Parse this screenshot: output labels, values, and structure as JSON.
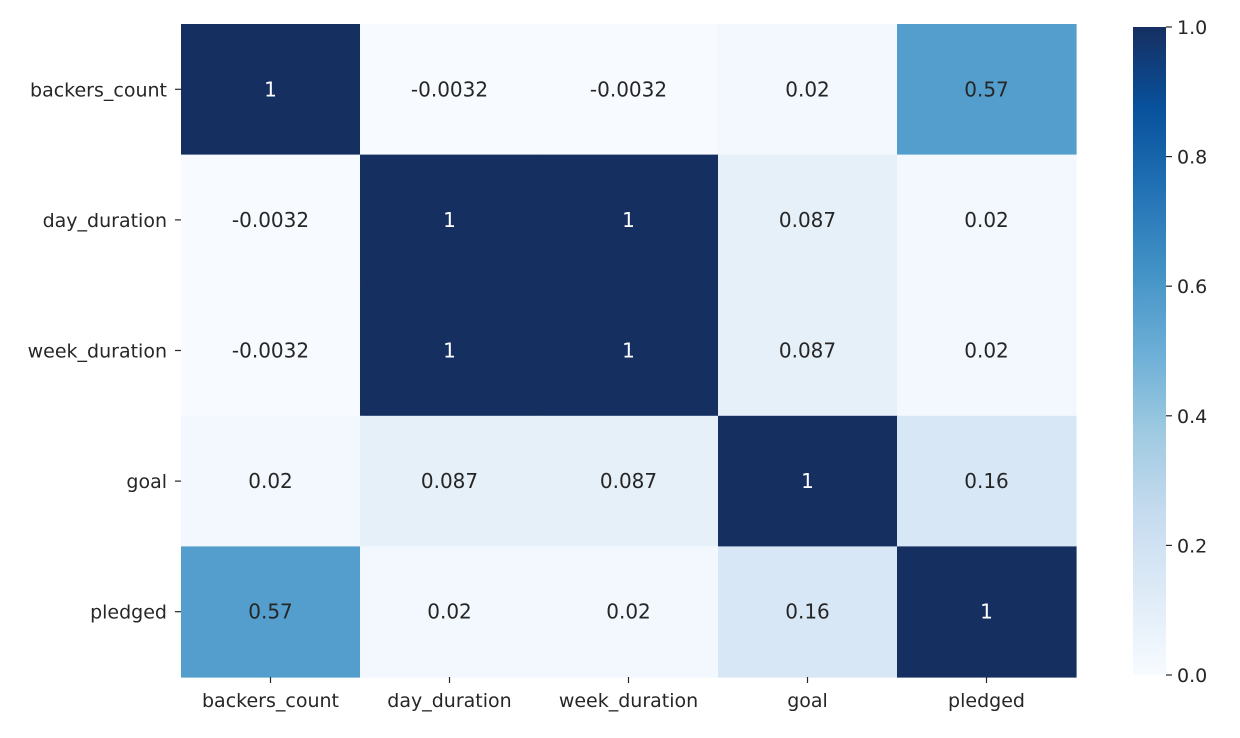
{
  "chart_data": {
    "type": "heatmap",
    "title": "",
    "xlabel": "",
    "ylabel": "",
    "rows": [
      "backers_count",
      "day_duration",
      "week_duration",
      "goal",
      "pledged"
    ],
    "columns": [
      "backers_count",
      "day_duration",
      "week_duration",
      "goal",
      "pledged"
    ],
    "values": [
      [
        1,
        -0.0032,
        -0.0032,
        0.02,
        0.57
      ],
      [
        -0.0032,
        1,
        1,
        0.087,
        0.02
      ],
      [
        -0.0032,
        1,
        1,
        0.087,
        0.02
      ],
      [
        0.02,
        0.087,
        0.087,
        1,
        0.16
      ],
      [
        0.57,
        0.02,
        0.02,
        0.16,
        1
      ]
    ],
    "annotations": [
      [
        "1",
        "-0.0032",
        "-0.0032",
        "0.02",
        "0.57"
      ],
      [
        "-0.0032",
        "1",
        "1",
        "0.087",
        "0.02"
      ],
      [
        "-0.0032",
        "1",
        "1",
        "0.087",
        "0.02"
      ],
      [
        "0.02",
        "0.087",
        "0.087",
        "1",
        "0.16"
      ],
      [
        "0.57",
        "0.02",
        "0.02",
        "0.16",
        "1"
      ]
    ],
    "colormap": "Blues",
    "color_low": "#f7fbff",
    "color_high": "#08306b",
    "vmin": 0,
    "vmax": 1,
    "colorbar": {
      "ticks": [
        0.0,
        0.2,
        0.4,
        0.6,
        0.8,
        1.0
      ],
      "tick_labels": [
        "0.0",
        "0.2",
        "0.4",
        "0.6",
        "0.8",
        "1.0"
      ]
    },
    "grid": false
  }
}
